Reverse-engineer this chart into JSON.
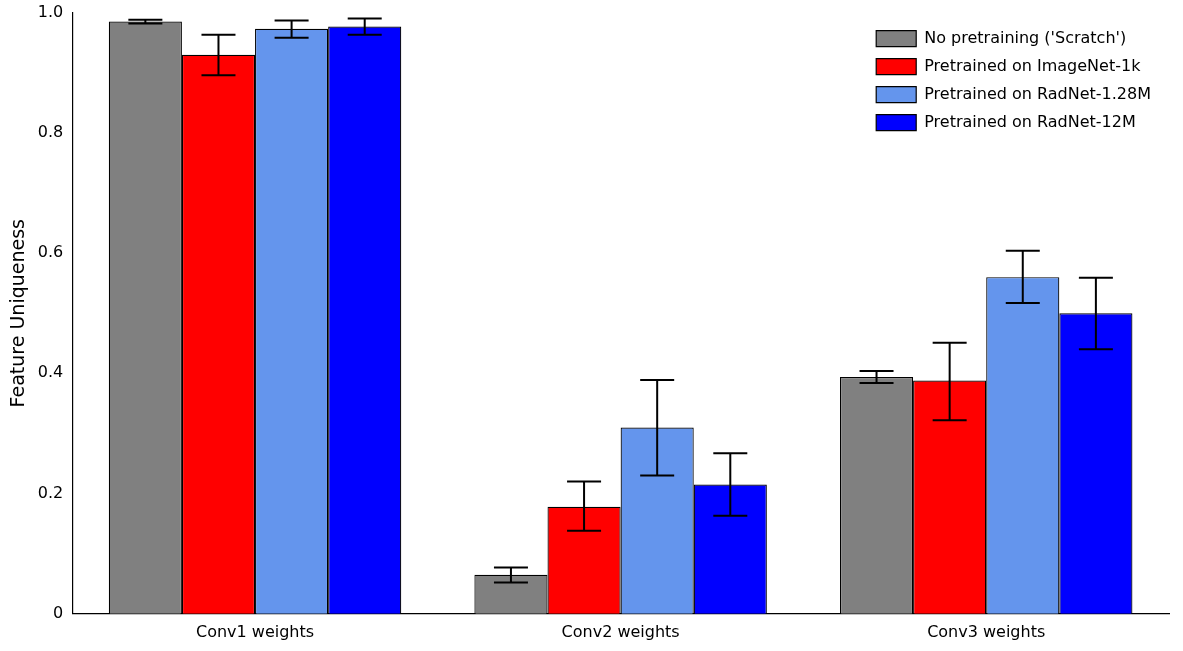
{
  "chart_data": {
    "type": "bar",
    "categories": [
      "Conv1 weights",
      "Conv2 weights",
      "Conv3 weights"
    ],
    "ylabel": "Feature Uniqueness",
    "ylim": [
      0,
      1.0
    ],
    "yticks": [
      0,
      0.2,
      0.4,
      0.6,
      0.8,
      {
        "value": 1,
        "label": "1.0"
      }
    ],
    "legend": "top right",
    "grid": false,
    "series": [
      {
        "name": "No pretraining ('Scratch')",
        "color": "#808080",
        "values": [
          0.985,
          0.065,
          0.394
        ],
        "errors": [
          [
            0.982,
            0.988
          ],
          [
            0.052,
            0.077
          ],
          [
            0.384,
            0.404
          ]
        ]
      },
      {
        "name": "Pretrained on ImageNet-1k",
        "color": "#ff0000",
        "values": [
          0.93,
          0.178,
          0.388
        ],
        "errors": [
          [
            0.896,
            0.963
          ],
          [
            0.138,
            0.22
          ],
          [
            0.322,
            0.451
          ]
        ]
      },
      {
        "name": "Pretrained on RadNet-1.28M",
        "color": "#6495ed",
        "values": [
          0.973,
          0.31,
          0.56
        ],
        "errors": [
          [
            0.958,
            0.987
          ],
          [
            0.23,
            0.389
          ],
          [
            0.517,
            0.604
          ]
        ]
      },
      {
        "name": "Pretrained on RadNet-12M",
        "color": "#0000ff",
        "values": [
          0.977,
          0.215,
          0.5
        ],
        "errors": [
          [
            0.963,
            0.99
          ],
          [
            0.163,
            0.267
          ],
          [
            0.44,
            0.559
          ]
        ]
      }
    ]
  }
}
